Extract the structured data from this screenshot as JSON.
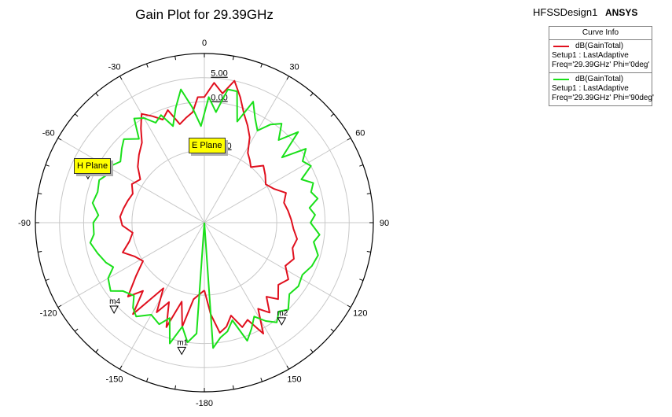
{
  "chart_data": {
    "type": "polar",
    "title": "Gain Plot for 29.39GHz",
    "design_name": "HFSSDesign1",
    "brand": "ANSYS",
    "legend_title": "Curve Info",
    "legend_placement": "top-right",
    "radial_ticks": [
      {
        "value": 5,
        "label": "5.00"
      },
      {
        "value": 0,
        "label": "0.00"
      },
      {
        "value": -10,
        "label": "-10.00"
      }
    ],
    "radial_range": [
      -25,
      10
    ],
    "angle_ticks": [
      {
        "angle": 0,
        "label": "0"
      },
      {
        "angle": 30,
        "label": "30"
      },
      {
        "angle": 60,
        "label": "60"
      },
      {
        "angle": 90,
        "label": "90"
      },
      {
        "angle": 120,
        "label": "120"
      },
      {
        "angle": 150,
        "label": "150"
      },
      {
        "angle": 180,
        "label": "-180"
      },
      {
        "angle": -150,
        "label": "-150"
      },
      {
        "angle": -120,
        "label": "-120"
      },
      {
        "angle": -90,
        "label": "-90"
      },
      {
        "angle": -60,
        "label": "-60"
      },
      {
        "angle": -30,
        "label": "-30"
      }
    ],
    "series": [
      {
        "name": "dB(GainTotal)",
        "setup": "Setup1 : LastAdaptive",
        "params": "Freq='29.39GHz' Phi='0deg'",
        "color": "#e0101e",
        "points": [
          [
            -180,
            -11
          ],
          [
            -172,
            -9
          ],
          [
            -168,
            -3
          ],
          [
            -164,
            -8
          ],
          [
            -160,
            -2
          ],
          [
            -156,
            -7
          ],
          [
            -152,
            -4
          ],
          [
            -148,
            -9
          ],
          [
            -142,
            -1
          ],
          [
            -138,
            -6
          ],
          [
            -134,
            -3
          ],
          [
            -128,
            -7
          ],
          [
            -122,
            -10
          ],
          [
            -116,
            -9
          ],
          [
            -110,
            -7
          ],
          [
            -104,
            -9
          ],
          [
            -98,
            -10
          ],
          [
            -92,
            -8
          ],
          [
            -86,
            -7.5
          ],
          [
            -80,
            -8
          ],
          [
            -74,
            -8.5
          ],
          [
            -68,
            -9
          ],
          [
            -62,
            -8
          ],
          [
            -56,
            -9
          ],
          [
            -50,
            -7
          ],
          [
            -44,
            -5.5
          ],
          [
            -38,
            -4
          ],
          [
            -34,
            -1.5
          ],
          [
            -30,
            1
          ],
          [
            -26,
            -0.5
          ],
          [
            -22,
            -2
          ],
          [
            -18,
            -0.5
          ],
          [
            -14,
            -4
          ],
          [
            -10,
            -3
          ],
          [
            -6,
            -2
          ],
          [
            -3,
            1
          ],
          [
            0,
            1
          ],
          [
            4,
            4
          ],
          [
            8,
            2
          ],
          [
            12,
            5
          ],
          [
            16,
            2
          ],
          [
            20,
            -1
          ],
          [
            24,
            -3
          ],
          [
            28,
            -5
          ],
          [
            32,
            -8
          ],
          [
            36,
            -9
          ],
          [
            40,
            -10
          ],
          [
            46,
            -8
          ],
          [
            52,
            -9
          ],
          [
            58,
            -10
          ],
          [
            64,
            -9
          ],
          [
            70,
            -7
          ],
          [
            76,
            -8
          ],
          [
            82,
            -7.5
          ],
          [
            88,
            -7
          ],
          [
            94,
            -6.5
          ],
          [
            100,
            -5.5
          ],
          [
            106,
            -6
          ],
          [
            112,
            -5
          ],
          [
            118,
            -6
          ],
          [
            124,
            -4
          ],
          [
            130,
            -5
          ],
          [
            136,
            -3
          ],
          [
            140,
            -5
          ],
          [
            144,
            -2
          ],
          [
            148,
            -4
          ],
          [
            152,
            1
          ],
          [
            156,
            -3
          ],
          [
            160,
            -2
          ],
          [
            164,
            -5
          ],
          [
            168,
            -3
          ],
          [
            172,
            -2
          ],
          [
            176,
            -6
          ],
          [
            180,
            -11
          ]
        ]
      },
      {
        "name": "dB(GainTotal)",
        "setup": "Setup1 : LastAdaptive",
        "params": "Freq='29.39GHz' Phi='90deg'",
        "color": "#1ae01a",
        "points": [
          [
            -180,
            -25
          ],
          [
            -176,
            -2
          ],
          [
            -172,
            0
          ],
          [
            -168,
            -3
          ],
          [
            -164,
            1
          ],
          [
            -160,
            -4
          ],
          [
            -156,
            -2
          ],
          [
            -150,
            -3
          ],
          [
            -144,
            -1
          ],
          [
            -140,
            -2
          ],
          [
            -136,
            -4
          ],
          [
            -130,
            -3
          ],
          [
            -126,
            -1
          ],
          [
            -120,
            -2
          ],
          [
            -116,
            -4
          ],
          [
            -112,
            -3
          ],
          [
            -106,
            -2
          ],
          [
            -100,
            -1
          ],
          [
            -96,
            -2
          ],
          [
            -90,
            -2
          ],
          [
            -86,
            -3
          ],
          [
            -80,
            -1.5
          ],
          [
            -74,
            -2
          ],
          [
            -68,
            -1.5
          ],
          [
            -64,
            -2.5
          ],
          [
            -60,
            -2
          ],
          [
            -54,
            -3.5
          ],
          [
            -48,
            -2
          ],
          [
            -44,
            -1
          ],
          [
            -38,
            -3
          ],
          [
            -34,
            1
          ],
          [
            -30,
            0
          ],
          [
            -26,
            -2
          ],
          [
            -22,
            -1
          ],
          [
            -18,
            -4
          ],
          [
            -14,
            -0.5
          ],
          [
            -10,
            3
          ],
          [
            -6,
            -1
          ],
          [
            -2,
            -5
          ],
          [
            2,
            1
          ],
          [
            6,
            -2
          ],
          [
            10,
            3
          ],
          [
            14,
            3
          ],
          [
            18,
            -3
          ],
          [
            22,
            2
          ],
          [
            26,
            -1
          ],
          [
            30,
            -3
          ],
          [
            34,
            -0.5
          ],
          [
            38,
            1
          ],
          [
            42,
            -2
          ],
          [
            46,
            2
          ],
          [
            50,
            -4
          ],
          [
            54,
            1
          ],
          [
            58,
            -1
          ],
          [
            62,
            0
          ],
          [
            66,
            -3
          ],
          [
            70,
            -1
          ],
          [
            74,
            -2
          ],
          [
            78,
            -1
          ],
          [
            82,
            -3
          ],
          [
            86,
            -2
          ],
          [
            90,
            -3
          ],
          [
            96,
            -1
          ],
          [
            100,
            -2
          ],
          [
            106,
            -0.5
          ],
          [
            112,
            -1
          ],
          [
            118,
            -2
          ],
          [
            124,
            -1.5
          ],
          [
            130,
            -2
          ],
          [
            136,
            0
          ],
          [
            140,
            -1
          ],
          [
            144,
            0.5
          ],
          [
            148,
            -1
          ],
          [
            152,
            -3
          ],
          [
            156,
            -1
          ],
          [
            160,
            1
          ],
          [
            164,
            -4
          ],
          [
            168,
            -2
          ],
          [
            172,
            -1
          ],
          [
            176,
            1
          ],
          [
            180,
            -25
          ]
        ]
      }
    ],
    "markers": [
      {
        "name": "m1",
        "angle": -170,
        "value": 2
      },
      {
        "name": "m2",
        "angle": 142,
        "value": 1
      },
      {
        "name": "m3",
        "angle": -68,
        "value": 1
      },
      {
        "name": "m4",
        "angle": -134,
        "value": 1
      }
    ],
    "annotations": [
      {
        "label": "E Plane"
      },
      {
        "label": "H Plane"
      }
    ]
  }
}
